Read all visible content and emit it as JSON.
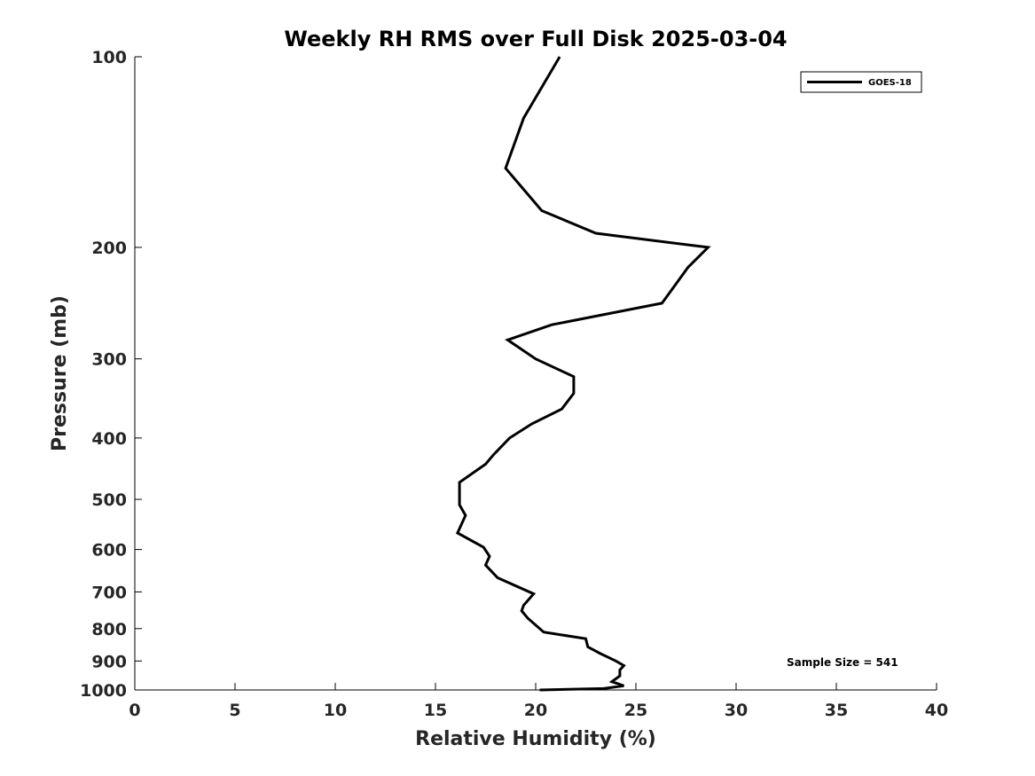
{
  "chart_data": {
    "type": "line",
    "title": "Weekly RH RMS over Full Disk 2025-03-04",
    "xlabel": "Relative Humidity (%)",
    "ylabel": "Pressure (mb)",
    "xlim": [
      0,
      40
    ],
    "ylim": [
      100,
      1000
    ],
    "y_scale": "log",
    "y_reversed": true,
    "x_ticks": [
      "0",
      "5",
      "10",
      "15",
      "20",
      "25",
      "30",
      "35",
      "40"
    ],
    "y_ticks": [
      "100",
      "200",
      "300",
      "400",
      "500",
      "600",
      "700",
      "800",
      "900",
      "1000"
    ],
    "grid": false,
    "legend_position": "top-right",
    "series": [
      {
        "name": "GOES-18",
        "color": "#000000",
        "points": [
          [
            21.2,
            100
          ],
          [
            19.4,
            125
          ],
          [
            18.5,
            150
          ],
          [
            20.3,
            175
          ],
          [
            23.0,
            190
          ],
          [
            28.6,
            200
          ],
          [
            27.6,
            215
          ],
          [
            26.3,
            245
          ],
          [
            20.8,
            265
          ],
          [
            18.6,
            280
          ],
          [
            20.0,
            300
          ],
          [
            21.9,
            320
          ],
          [
            21.9,
            340
          ],
          [
            21.3,
            360
          ],
          [
            19.8,
            380
          ],
          [
            18.7,
            400
          ],
          [
            17.9,
            425
          ],
          [
            17.5,
            440
          ],
          [
            16.2,
            470
          ],
          [
            16.2,
            510
          ],
          [
            16.5,
            530
          ],
          [
            16.1,
            565
          ],
          [
            17.4,
            595
          ],
          [
            17.7,
            615
          ],
          [
            17.5,
            635
          ],
          [
            18.1,
            665
          ],
          [
            19.9,
            705
          ],
          [
            19.4,
            735
          ],
          [
            19.3,
            750
          ],
          [
            19.6,
            770
          ],
          [
            20.4,
            810
          ],
          [
            22.5,
            830
          ],
          [
            22.6,
            855
          ],
          [
            23.2,
            875
          ],
          [
            24.0,
            900
          ],
          [
            24.4,
            915
          ],
          [
            24.2,
            930
          ],
          [
            24.2,
            950
          ],
          [
            23.8,
            970
          ],
          [
            24.4,
            985
          ],
          [
            23.4,
            995
          ],
          [
            20.2,
            1000
          ]
        ]
      }
    ],
    "annotation": "Sample Size = 541"
  }
}
